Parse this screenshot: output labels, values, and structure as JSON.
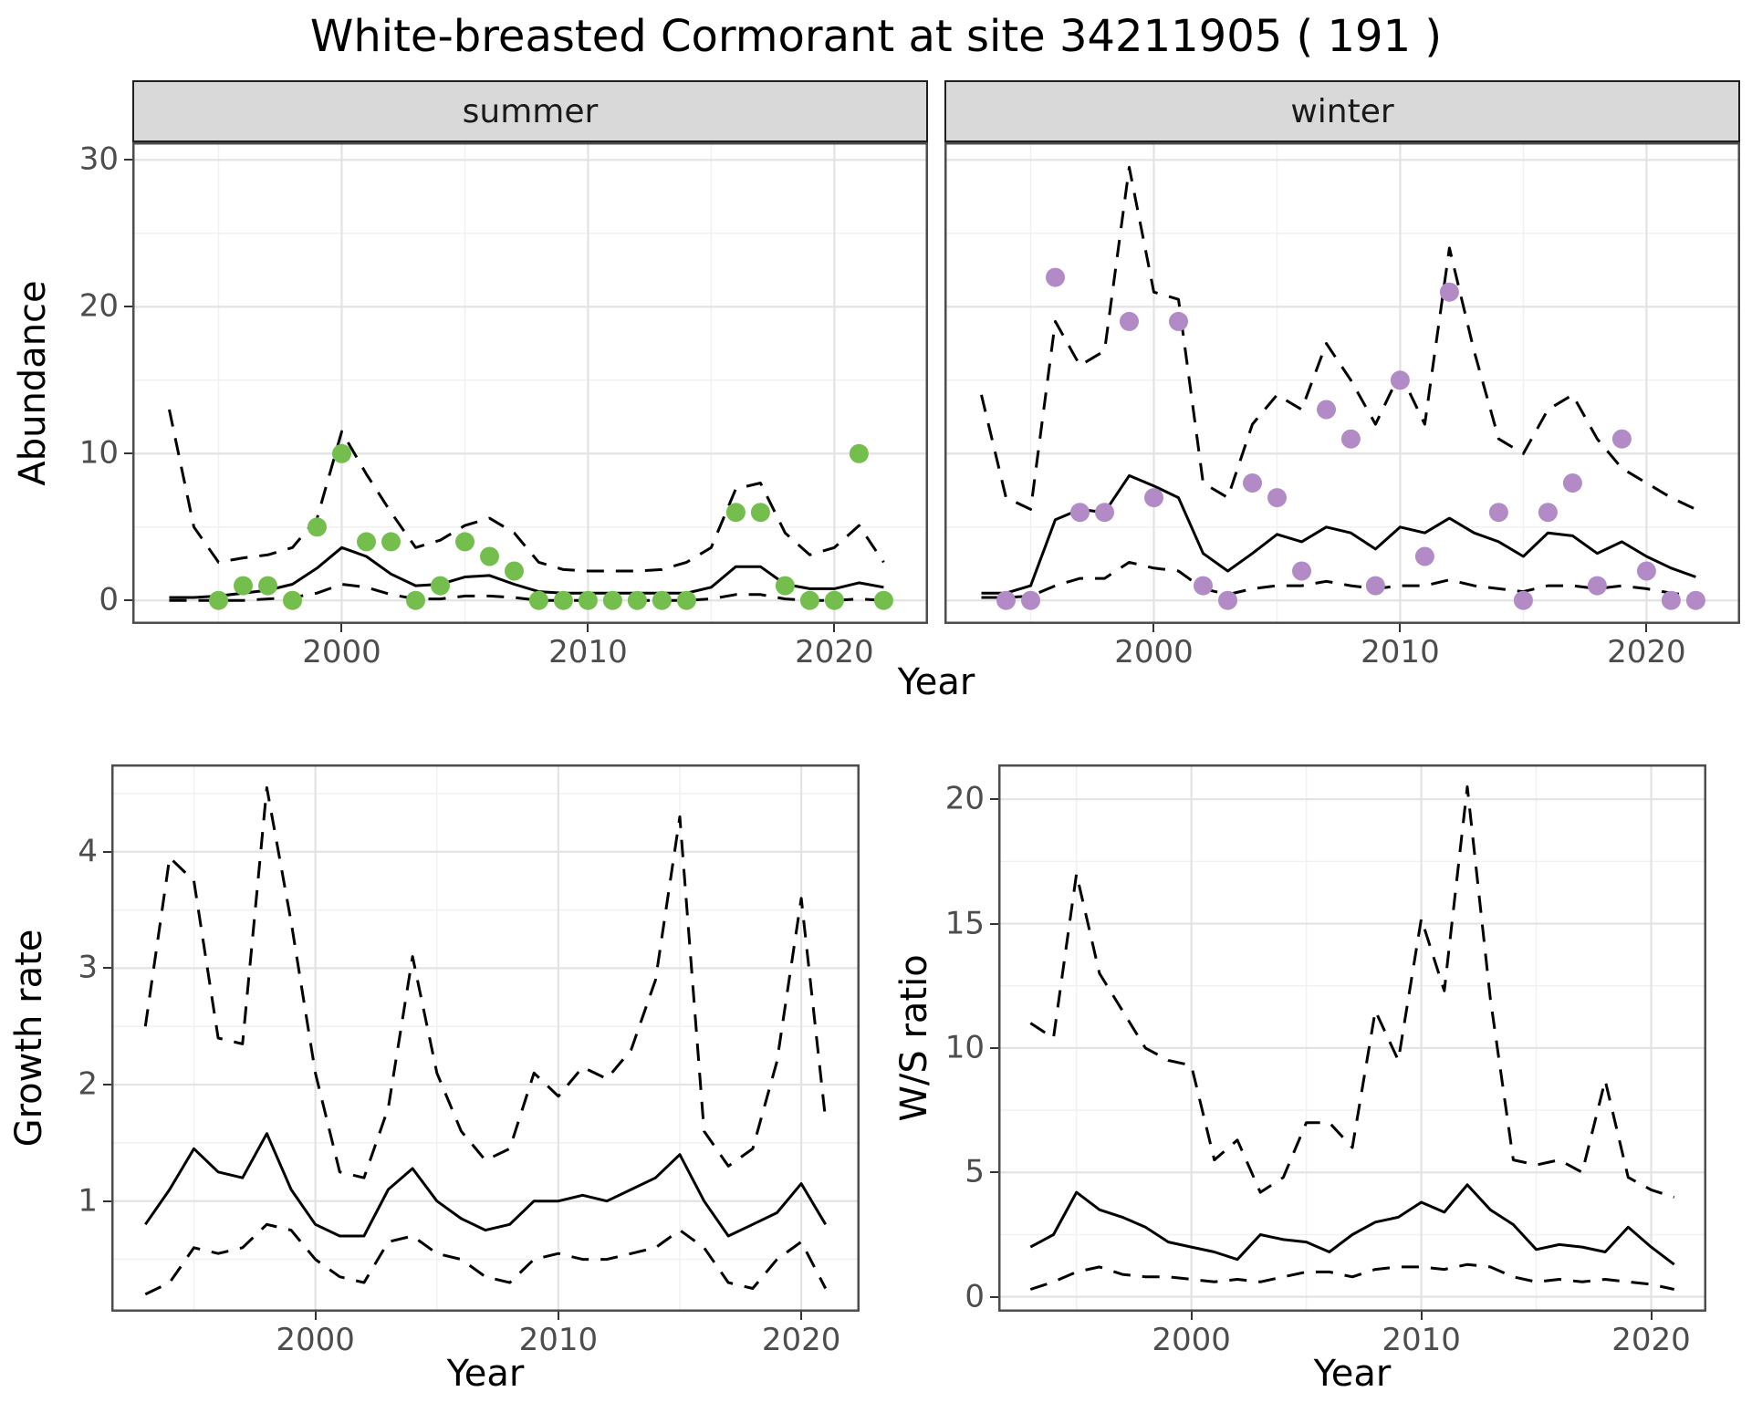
{
  "title": "White-breasted Cormorant at site 34211905 ( 191 )",
  "colors": {
    "summer_points": "#74BE4E",
    "winter_points": "#B28BC6",
    "line": "#000000",
    "strip_bg": "#D9D9D9",
    "grid_major": "#E3E3E3",
    "grid_minor": "#F1F1F1",
    "panel_border": "#4D4D4D",
    "tick_text": "#4d4d4d"
  },
  "chart_data": [
    {
      "id": "abundance-summer",
      "type": "scatter",
      "facet_label": "summer",
      "xlabel": "Year",
      "ylabel": "Abundance",
      "x_ticks": [
        2000,
        2010,
        2020
      ],
      "y_ticks": [
        0,
        10,
        20,
        30
      ],
      "show_y_tick_labels": true,
      "xlim": [
        1991.5,
        2023.8
      ],
      "ylim": [
        -1.6,
        31.2
      ],
      "grid": true,
      "years": [
        1993,
        1994,
        1995,
        1996,
        1997,
        1998,
        1999,
        2000,
        2001,
        2002,
        2003,
        2004,
        2005,
        2006,
        2007,
        2008,
        2009,
        2010,
        2011,
        2012,
        2013,
        2014,
        2015,
        2016,
        2017,
        2018,
        2019,
        2020,
        2021,
        2022
      ],
      "series": [
        {
          "name": "upper_ci",
          "style": "dashed",
          "values": [
            13.0,
            5.0,
            2.6,
            2.9,
            3.1,
            3.6,
            5.6,
            11.5,
            8.6,
            6.0,
            3.6,
            4.1,
            5.1,
            5.6,
            4.6,
            2.6,
            2.1,
            2.0,
            2.0,
            2.0,
            2.1,
            2.6,
            3.6,
            7.6,
            8.0,
            4.6,
            3.1,
            3.6,
            5.1,
            2.6
          ]
        },
        {
          "name": "lower_ci",
          "style": "dashed",
          "values": [
            0.0,
            0.0,
            0.0,
            0.0,
            0.1,
            0.2,
            0.5,
            1.1,
            0.9,
            0.4,
            0.1,
            0.1,
            0.3,
            0.3,
            0.2,
            0.0,
            0.0,
            0.0,
            0.0,
            0.0,
            0.0,
            0.0,
            0.1,
            0.4,
            0.4,
            0.1,
            0.0,
            0.0,
            0.1,
            0.0
          ]
        },
        {
          "name": "mean",
          "style": "solid",
          "values": [
            0.2,
            0.2,
            0.3,
            0.5,
            0.7,
            1.1,
            2.2,
            3.6,
            3.0,
            1.8,
            1.0,
            1.1,
            1.6,
            1.7,
            1.1,
            0.6,
            0.5,
            0.5,
            0.5,
            0.5,
            0.5,
            0.5,
            0.9,
            2.3,
            2.3,
            1.1,
            0.8,
            0.8,
            1.2,
            0.9
          ]
        }
      ],
      "points": {
        "color": "#74BE4E",
        "years": [
          1995,
          1996,
          1997,
          1998,
          1999,
          2000,
          2001,
          2002,
          2003,
          2004,
          2005,
          2006,
          2007,
          2008,
          2009,
          2010,
          2011,
          2012,
          2013,
          2014,
          2016,
          2017,
          2018,
          2019,
          2020,
          2021,
          2022
        ],
        "values": [
          0,
          1,
          1,
          0,
          5,
          10,
          4,
          4,
          0,
          1,
          4,
          3,
          2,
          0,
          0,
          0,
          0,
          0,
          0,
          0,
          6,
          6,
          1,
          0,
          0,
          10,
          0
        ]
      }
    },
    {
      "id": "abundance-winter",
      "type": "scatter",
      "facet_label": "winter",
      "xlabel": "Year",
      "ylabel": "Abundance",
      "x_ticks": [
        2000,
        2010,
        2020
      ],
      "y_ticks": [
        0,
        10,
        20,
        30
      ],
      "show_y_tick_labels": false,
      "xlim": [
        1991.5,
        2023.8
      ],
      "ylim": [
        -1.6,
        31.2
      ],
      "grid": true,
      "years": [
        1993,
        1994,
        1995,
        1996,
        1997,
        1998,
        1999,
        2000,
        2001,
        2002,
        2003,
        2004,
        2005,
        2006,
        2007,
        2008,
        2009,
        2010,
        2011,
        2012,
        2013,
        2014,
        2015,
        2016,
        2017,
        2018,
        2019,
        2020,
        2021,
        2022
      ],
      "series": [
        {
          "name": "upper_ci",
          "style": "dashed",
          "values": [
            14.0,
            7.0,
            6.2,
            19.0,
            16.0,
            17.0,
            29.5,
            21.0,
            20.5,
            8.0,
            7.0,
            12.0,
            14.0,
            13.0,
            17.5,
            15.0,
            12.0,
            15.5,
            12.0,
            24.0,
            17.0,
            11.0,
            10.0,
            13.0,
            14.0,
            11.0,
            9.0,
            8.0,
            7.0,
            6.2
          ]
        },
        {
          "name": "lower_ci",
          "style": "dashed",
          "values": [
            0.2,
            0.2,
            0.3,
            1.0,
            1.5,
            1.5,
            2.6,
            2.2,
            2.0,
            0.8,
            0.4,
            0.8,
            1.0,
            1.0,
            1.3,
            1.0,
            0.8,
            1.0,
            1.0,
            1.4,
            1.0,
            0.8,
            0.6,
            1.0,
            1.0,
            0.8,
            1.0,
            0.8,
            0.5,
            0.3
          ]
        },
        {
          "name": "mean",
          "style": "solid",
          "values": [
            0.5,
            0.5,
            1.0,
            5.5,
            6.2,
            6.0,
            8.5,
            7.8,
            7.0,
            3.2,
            2.0,
            3.2,
            4.5,
            4.0,
            5.0,
            4.6,
            3.5,
            5.0,
            4.6,
            5.6,
            4.6,
            4.0,
            3.0,
            4.6,
            4.4,
            3.2,
            4.0,
            3.0,
            2.2,
            1.6
          ]
        }
      ],
      "points": {
        "color": "#B28BC6",
        "years": [
          1994,
          1995,
          1996,
          1997,
          1998,
          1999,
          2000,
          2001,
          2002,
          2003,
          2004,
          2005,
          2006,
          2007,
          2008,
          2009,
          2010,
          2011,
          2012,
          2014,
          2015,
          2016,
          2017,
          2018,
          2019,
          2020,
          2021,
          2022
        ],
        "values": [
          0,
          0,
          22,
          6,
          6,
          19,
          7,
          19,
          1,
          0,
          8,
          7,
          2,
          13,
          11,
          1,
          15,
          3,
          21,
          6,
          0,
          6,
          8,
          1,
          11,
          2,
          0,
          0
        ]
      }
    },
    {
      "id": "growth-rate",
      "type": "line",
      "facet_label": "",
      "xlabel": "Year",
      "ylabel": "Growth rate",
      "x_ticks": [
        2000,
        2010,
        2020
      ],
      "y_ticks": [
        1,
        2,
        3,
        4
      ],
      "show_y_tick_labels": true,
      "xlim": [
        1991.6,
        2022.4
      ],
      "ylim": [
        0.05,
        4.75
      ],
      "grid": true,
      "years": [
        1993,
        1994,
        1995,
        1996,
        1997,
        1998,
        1999,
        2000,
        2001,
        2002,
        2003,
        2004,
        2005,
        2006,
        2007,
        2008,
        2009,
        2010,
        2011,
        2012,
        2013,
        2014,
        2015,
        2016,
        2017,
        2018,
        2019,
        2020,
        2021
      ],
      "series": [
        {
          "name": "upper_ci",
          "style": "dashed",
          "values": [
            2.5,
            3.95,
            3.75,
            2.4,
            2.35,
            4.55,
            3.4,
            2.1,
            1.25,
            1.2,
            1.8,
            3.1,
            2.1,
            1.6,
            1.35,
            1.45,
            2.1,
            1.9,
            2.15,
            2.05,
            2.3,
            2.9,
            4.3,
            1.6,
            1.3,
            1.45,
            2.2,
            3.6,
            1.7
          ]
        },
        {
          "name": "lower_ci",
          "style": "dashed",
          "values": [
            0.2,
            0.3,
            0.6,
            0.55,
            0.6,
            0.8,
            0.75,
            0.5,
            0.35,
            0.3,
            0.65,
            0.7,
            0.55,
            0.5,
            0.35,
            0.3,
            0.5,
            0.55,
            0.5,
            0.5,
            0.55,
            0.6,
            0.75,
            0.6,
            0.3,
            0.25,
            0.5,
            0.65,
            0.25
          ]
        },
        {
          "name": "mean",
          "style": "solid",
          "values": [
            0.8,
            1.1,
            1.45,
            1.25,
            1.2,
            1.58,
            1.1,
            0.8,
            0.7,
            0.7,
            1.1,
            1.28,
            1.0,
            0.85,
            0.75,
            0.8,
            1.0,
            1.0,
            1.05,
            1.0,
            1.1,
            1.2,
            1.4,
            1.0,
            0.7,
            0.8,
            0.9,
            1.15,
            0.8
          ]
        }
      ],
      "points": null
    },
    {
      "id": "ws-ratio",
      "type": "line",
      "facet_label": "",
      "xlabel": "Year",
      "ylabel": "W/S ratio",
      "x_ticks": [
        2000,
        2010,
        2020
      ],
      "y_ticks": [
        0,
        5,
        10,
        15,
        20
      ],
      "show_y_tick_labels": true,
      "xlim": [
        1991.6,
        2022.4
      ],
      "ylim": [
        -0.6,
        21.4
      ],
      "grid": true,
      "years": [
        1993,
        1994,
        1995,
        1996,
        1997,
        1998,
        1999,
        2000,
        2001,
        2002,
        2003,
        2004,
        2005,
        2006,
        2007,
        2008,
        2009,
        2010,
        2011,
        2012,
        2013,
        2014,
        2015,
        2016,
        2017,
        2018,
        2019,
        2020,
        2021
      ],
      "series": [
        {
          "name": "upper_ci",
          "style": "dashed",
          "values": [
            11.0,
            10.4,
            17.0,
            13.0,
            11.5,
            10.0,
            9.5,
            9.3,
            5.5,
            6.3,
            4.2,
            4.8,
            7.0,
            7.0,
            6.0,
            11.5,
            9.5,
            15.2,
            12.3,
            20.5,
            12.0,
            5.5,
            5.3,
            5.5,
            5.0,
            8.7,
            4.8,
            4.3,
            4.0
          ]
        },
        {
          "name": "lower_ci",
          "style": "dashed",
          "values": [
            0.3,
            0.6,
            1.0,
            1.2,
            0.9,
            0.8,
            0.8,
            0.7,
            0.6,
            0.7,
            0.6,
            0.8,
            1.0,
            1.0,
            0.8,
            1.1,
            1.2,
            1.2,
            1.1,
            1.3,
            1.2,
            0.8,
            0.6,
            0.7,
            0.6,
            0.7,
            0.6,
            0.5,
            0.3
          ]
        },
        {
          "name": "mean",
          "style": "solid",
          "values": [
            2.0,
            2.5,
            4.2,
            3.5,
            3.2,
            2.8,
            2.2,
            2.0,
            1.8,
            1.5,
            2.5,
            2.3,
            2.2,
            1.8,
            2.5,
            3.0,
            3.2,
            3.8,
            3.4,
            4.5,
            3.5,
            2.9,
            1.9,
            2.1,
            2.0,
            1.8,
            2.8,
            2.0,
            1.3
          ]
        }
      ],
      "points": null
    }
  ]
}
